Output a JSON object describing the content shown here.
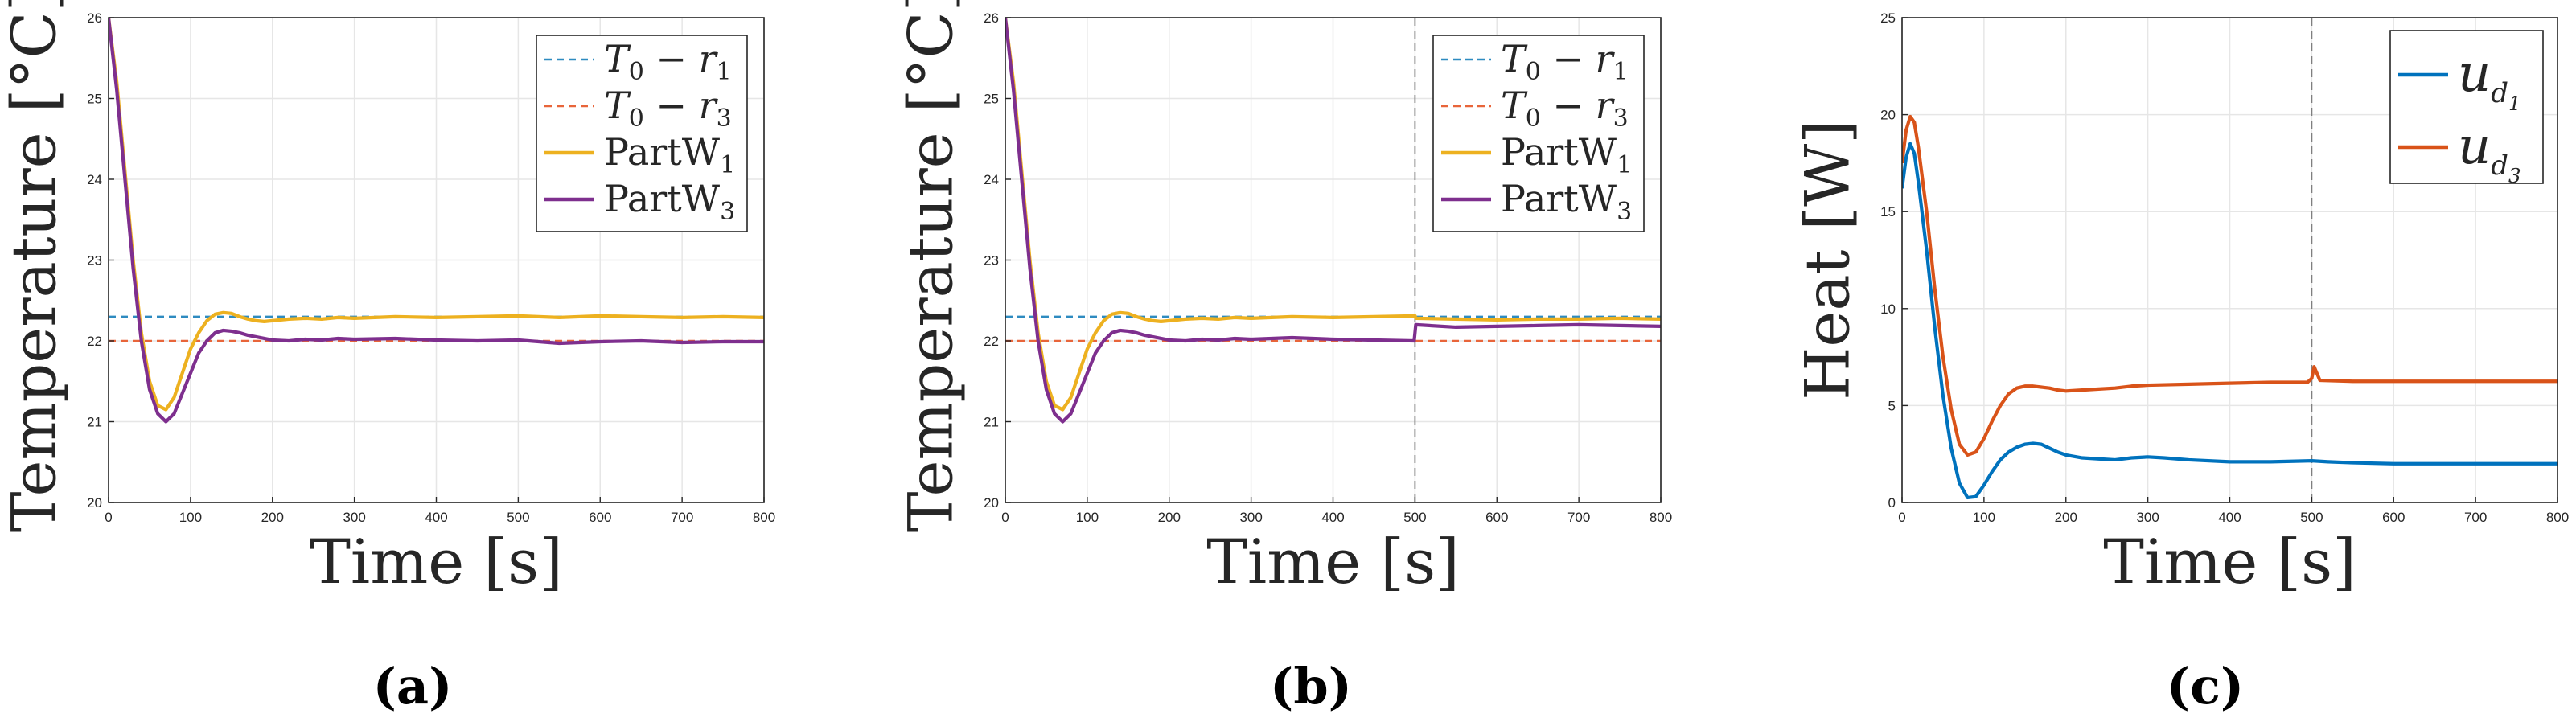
{
  "chart_data": [
    {
      "type": "line",
      "panel_label": "(a)",
      "xlabel": "Time [s]",
      "ylabel": "Temperature [°C]",
      "xlim": [
        0,
        800
      ],
      "ylim": [
        20,
        26
      ],
      "xticks": [
        0,
        100,
        200,
        300,
        400,
        500,
        600,
        700,
        800
      ],
      "yticks": [
        20,
        21,
        22,
        23,
        24,
        25,
        26
      ],
      "grid": true,
      "legend_position": "top-right",
      "vlines": [],
      "series": [
        {
          "name": "T0 - r1",
          "label_main": "T",
          "label_sub1": "0",
          "label_mid": " − r",
          "label_sub2": "1",
          "style": "dashed",
          "color": "#2E8BC0",
          "x": [
            0,
            800
          ],
          "y": [
            22.3,
            22.3
          ]
        },
        {
          "name": "T0 - r3",
          "label_main": "T",
          "label_sub1": "0",
          "label_mid": " − r",
          "label_sub2": "3",
          "style": "dashed",
          "color": "#E8653A",
          "x": [
            0,
            800
          ],
          "y": [
            22.0,
            22.0
          ]
        },
        {
          "name": "PartW1",
          "label_main": "PartW",
          "label_sub1": "1",
          "style": "solid",
          "color": "#EDB120",
          "x": [
            0,
            10,
            20,
            30,
            40,
            50,
            60,
            70,
            80,
            90,
            100,
            110,
            120,
            130,
            140,
            150,
            160,
            170,
            180,
            190,
            200,
            220,
            240,
            260,
            280,
            300,
            350,
            400,
            450,
            500,
            550,
            600,
            650,
            700,
            750,
            800
          ],
          "y": [
            26.0,
            25.2,
            24.1,
            23.0,
            22.1,
            21.5,
            21.2,
            21.15,
            21.3,
            21.6,
            21.9,
            22.1,
            22.25,
            22.33,
            22.35,
            22.34,
            22.3,
            22.27,
            22.25,
            22.24,
            22.25,
            22.27,
            22.28,
            22.27,
            22.29,
            22.28,
            22.3,
            22.29,
            22.3,
            22.31,
            22.29,
            22.31,
            22.3,
            22.29,
            22.3,
            22.29
          ]
        },
        {
          "name": "PartW3",
          "label_main": "PartW",
          "label_sub1": "3",
          "style": "solid",
          "color": "#7E2F8E",
          "x": [
            0,
            10,
            20,
            30,
            40,
            50,
            60,
            70,
            80,
            90,
            100,
            110,
            120,
            130,
            140,
            150,
            160,
            170,
            180,
            190,
            200,
            220,
            240,
            260,
            280,
            300,
            350,
            400,
            450,
            500,
            550,
            600,
            650,
            700,
            750,
            800
          ],
          "y": [
            26.0,
            25.1,
            24.0,
            22.9,
            22.0,
            21.4,
            21.1,
            21.0,
            21.1,
            21.35,
            21.6,
            21.85,
            22.0,
            22.1,
            22.13,
            22.12,
            22.1,
            22.07,
            22.05,
            22.03,
            22.01,
            22.0,
            22.02,
            22.01,
            22.03,
            22.02,
            22.03,
            22.01,
            22.0,
            22.01,
            21.97,
            21.99,
            22.0,
            21.98,
            21.99,
            21.99
          ]
        }
      ]
    },
    {
      "type": "line",
      "panel_label": "(b)",
      "xlabel": "Time [s]",
      "ylabel": "Temperature [°C]",
      "xlim": [
        0,
        800
      ],
      "ylim": [
        20,
        26
      ],
      "xticks": [
        0,
        100,
        200,
        300,
        400,
        500,
        600,
        700,
        800
      ],
      "yticks": [
        20,
        21,
        22,
        23,
        24,
        25,
        26
      ],
      "grid": true,
      "legend_position": "top-right",
      "vlines": [
        500
      ],
      "series": [
        {
          "name": "T0 - r1",
          "label_main": "T",
          "label_sub1": "0",
          "label_mid": " − r",
          "label_sub2": "1",
          "style": "dashed",
          "color": "#2E8BC0",
          "x": [
            0,
            800
          ],
          "y": [
            22.3,
            22.3
          ]
        },
        {
          "name": "T0 - r3",
          "label_main": "T",
          "label_sub1": "0",
          "label_mid": " − r",
          "label_sub2": "3",
          "style": "dashed",
          "color": "#E8653A",
          "x": [
            0,
            800
          ],
          "y": [
            22.0,
            22.0
          ]
        },
        {
          "name": "PartW1",
          "label_main": "PartW",
          "label_sub1": "1",
          "style": "solid",
          "color": "#EDB120",
          "x": [
            0,
            10,
            20,
            30,
            40,
            50,
            60,
            70,
            80,
            90,
            100,
            110,
            120,
            130,
            140,
            150,
            160,
            170,
            180,
            190,
            200,
            220,
            240,
            260,
            280,
            300,
            350,
            400,
            450,
            500,
            501,
            550,
            600,
            650,
            700,
            750,
            800
          ],
          "y": [
            26.0,
            25.2,
            24.1,
            23.0,
            22.1,
            21.5,
            21.2,
            21.15,
            21.3,
            21.6,
            21.9,
            22.1,
            22.25,
            22.33,
            22.35,
            22.34,
            22.3,
            22.27,
            22.25,
            22.24,
            22.25,
            22.27,
            22.28,
            22.27,
            22.29,
            22.28,
            22.3,
            22.29,
            22.3,
            22.31,
            22.28,
            22.27,
            22.26,
            22.27,
            22.27,
            22.28,
            22.27
          ]
        },
        {
          "name": "PartW3",
          "label_main": "PartW",
          "label_sub1": "3",
          "style": "solid",
          "color": "#7E2F8E",
          "x": [
            0,
            10,
            20,
            30,
            40,
            50,
            60,
            70,
            80,
            90,
            100,
            110,
            120,
            130,
            140,
            150,
            160,
            170,
            180,
            190,
            200,
            220,
            240,
            260,
            280,
            300,
            350,
            400,
            450,
            499,
            501,
            550,
            600,
            650,
            700,
            750,
            800
          ],
          "y": [
            26.0,
            25.1,
            24.0,
            22.9,
            22.0,
            21.4,
            21.1,
            21.0,
            21.1,
            21.35,
            21.6,
            21.85,
            22.0,
            22.1,
            22.13,
            22.12,
            22.1,
            22.07,
            22.05,
            22.03,
            22.01,
            22.0,
            22.02,
            22.01,
            22.03,
            22.02,
            22.04,
            22.02,
            22.01,
            22.0,
            22.2,
            22.17,
            22.18,
            22.19,
            22.2,
            22.19,
            22.18
          ]
        }
      ]
    },
    {
      "type": "line",
      "panel_label": "(c)",
      "xlabel": "Time [s]",
      "ylabel": "Heat [W]",
      "xlim": [
        0,
        800
      ],
      "ylim": [
        0,
        25
      ],
      "xticks": [
        0,
        100,
        200,
        300,
        400,
        500,
        600,
        700,
        800
      ],
      "yticks": [
        0,
        5,
        10,
        15,
        20,
        25
      ],
      "grid": true,
      "legend_position": "top-right",
      "vlines": [
        500
      ],
      "series": [
        {
          "name": "u_d1",
          "label_main": "u",
          "label_sub1": "d",
          "label_sub2": "1",
          "style": "solid",
          "color": "#0072BD",
          "x": [
            0,
            5,
            10,
            15,
            20,
            30,
            40,
            50,
            60,
            70,
            80,
            90,
            100,
            110,
            120,
            130,
            140,
            150,
            160,
            170,
            180,
            190,
            200,
            220,
            240,
            260,
            280,
            300,
            320,
            350,
            400,
            450,
            500,
            520,
            550,
            600,
            650,
            700,
            750,
            800
          ],
          "y": [
            16.2,
            17.8,
            18.5,
            18.0,
            16.5,
            13.0,
            9.0,
            5.5,
            2.8,
            1.0,
            0.25,
            0.3,
            0.9,
            1.6,
            2.2,
            2.6,
            2.85,
            3.0,
            3.05,
            3.0,
            2.8,
            2.6,
            2.45,
            2.3,
            2.25,
            2.2,
            2.3,
            2.35,
            2.3,
            2.2,
            2.1,
            2.1,
            2.15,
            2.1,
            2.05,
            2.0,
            2.0,
            2.0,
            2.0,
            2.0
          ]
        },
        {
          "name": "u_d3",
          "label_main": "u",
          "label_sub1": "d",
          "label_sub2": "3",
          "style": "solid",
          "color": "#D95319",
          "x": [
            0,
            5,
            10,
            15,
            20,
            30,
            40,
            50,
            60,
            70,
            80,
            90,
            100,
            110,
            120,
            130,
            140,
            150,
            160,
            170,
            180,
            190,
            200,
            220,
            240,
            260,
            280,
            300,
            350,
            400,
            450,
            495,
            500,
            503,
            510,
            550,
            600,
            650,
            700,
            750,
            800
          ],
          "y": [
            17.5,
            19.2,
            19.9,
            19.6,
            18.3,
            15.0,
            11.0,
            7.5,
            4.8,
            3.0,
            2.45,
            2.6,
            3.3,
            4.2,
            5.0,
            5.6,
            5.9,
            6.0,
            6.0,
            5.95,
            5.9,
            5.8,
            5.75,
            5.8,
            5.85,
            5.9,
            6.0,
            6.05,
            6.1,
            6.15,
            6.2,
            6.2,
            6.4,
            7.0,
            6.3,
            6.25,
            6.25,
            6.25,
            6.25,
            6.25,
            6.25
          ]
        }
      ]
    }
  ]
}
